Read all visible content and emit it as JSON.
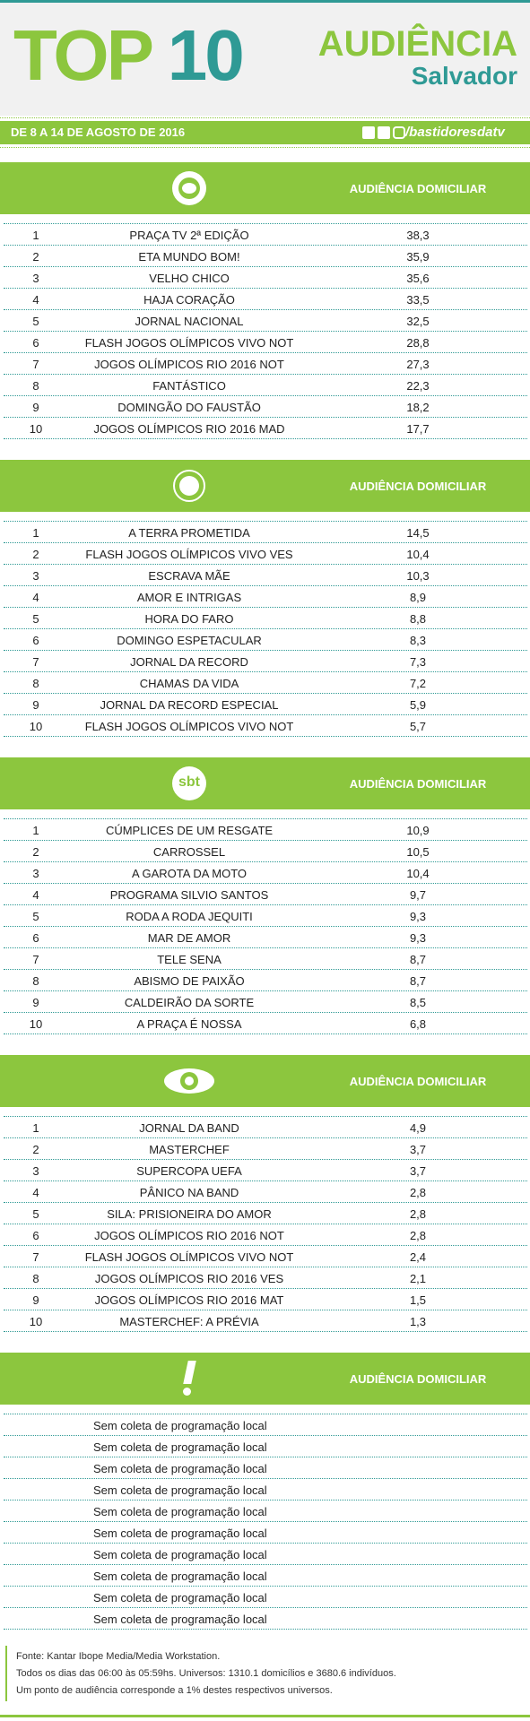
{
  "header": {
    "title_word": "TOP",
    "title_number": "10",
    "brand": "AUDIÊNCIA",
    "city": "Salvador"
  },
  "date_bar": {
    "period": "DE 8 A 14 DE AGOSTO DE 2016",
    "handle": "/bastidoresdatv"
  },
  "sections": [
    {
      "logo": "globo",
      "heading": "AUDIÊNCIA DOMICILIAR",
      "rows": [
        [
          "1",
          "PRAÇA TV 2ª EDIÇÃO",
          "38,3"
        ],
        [
          "2",
          "ETA MUNDO BOM!",
          "35,9"
        ],
        [
          "3",
          "VELHO CHICO",
          "35,6"
        ],
        [
          "4",
          "HAJA CORAÇÃO",
          "33,5"
        ],
        [
          "5",
          "JORNAL NACIONAL",
          "32,5"
        ],
        [
          "6",
          "FLASH JOGOS OLÍMPICOS VIVO NOT",
          "28,8"
        ],
        [
          "7",
          "JOGOS OLÍMPICOS RIO 2016 NOT",
          "27,3"
        ],
        [
          "8",
          "FANTÁSTICO",
          "22,3"
        ],
        [
          "9",
          "DOMINGÃO DO FAUSTÃO",
          "18,2"
        ],
        [
          "10",
          "JOGOS OLÍMPICOS RIO 2016 MAD",
          "17,7"
        ]
      ]
    },
    {
      "logo": "record",
      "heading": "AUDIÊNCIA DOMICILIAR",
      "rows": [
        [
          "1",
          "A TERRA PROMETIDA",
          "14,5"
        ],
        [
          "2",
          "FLASH JOGOS OLÍMPICOS VIVO VES",
          "10,4"
        ],
        [
          "3",
          "ESCRAVA MÃE",
          "10,3"
        ],
        [
          "4",
          "AMOR E INTRIGAS",
          "8,9"
        ],
        [
          "5",
          "HORA DO FARO",
          "8,8"
        ],
        [
          "6",
          "DOMINGO ESPETACULAR",
          "8,3"
        ],
        [
          "7",
          "JORNAL DA RECORD",
          "7,3"
        ],
        [
          "8",
          "CHAMAS DA VIDA",
          "7,2"
        ],
        [
          "9",
          "JORNAL DA RECORD ESPECIAL",
          "5,9"
        ],
        [
          "10",
          "FLASH JOGOS OLÍMPICOS VIVO NOT",
          "5,7"
        ]
      ]
    },
    {
      "logo": "sbt",
      "logo_text": "sbt",
      "heading": "AUDIÊNCIA DOMICILIAR",
      "rows": [
        [
          "1",
          "CÚMPLICES DE UM RESGATE",
          "10,9"
        ],
        [
          "2",
          "CARROSSEL",
          "10,5"
        ],
        [
          "3",
          "A GAROTA DA MOTO",
          "10,4"
        ],
        [
          "4",
          "PROGRAMA SILVIO SANTOS",
          "9,7"
        ],
        [
          "5",
          "RODA A RODA JEQUITI",
          "9,3"
        ],
        [
          "6",
          "MAR DE AMOR",
          "9,3"
        ],
        [
          "7",
          "TELE SENA",
          "8,7"
        ],
        [
          "8",
          "ABISMO DE PAIXÃO",
          "8,7"
        ],
        [
          "9",
          "CALDEIRÃO DA SORTE",
          "8,5"
        ],
        [
          "10",
          "A PRAÇA É NOSSA",
          "6,8"
        ]
      ]
    },
    {
      "logo": "band",
      "heading": "AUDIÊNCIA DOMICILIAR",
      "rows": [
        [
          "1",
          "JORNAL DA BAND",
          "4,9"
        ],
        [
          "2",
          "MASTERCHEF",
          "3,7"
        ],
        [
          "3",
          "SUPERCOPA UEFA",
          "3,7"
        ],
        [
          "4",
          "PÂNICO NA BAND",
          "2,8"
        ],
        [
          "5",
          "SILA: PRISIONEIRA DO AMOR",
          "2,8"
        ],
        [
          "6",
          "JOGOS OLÍMPICOS RIO 2016 NOT",
          "2,8"
        ],
        [
          "7",
          "FLASH JOGOS OLÍMPICOS VIVO NOT",
          "2,4"
        ],
        [
          "8",
          "JOGOS OLÍMPICOS RIO 2016 VES",
          "2,1"
        ],
        [
          "9",
          "JOGOS OLÍMPICOS RIO 2016 MAT",
          "1,5"
        ],
        [
          "10",
          "MASTERCHEF: A PRÉVIA",
          "1,3"
        ]
      ]
    },
    {
      "logo": "alert",
      "heading": "AUDIÊNCIA DOMICILIAR",
      "rows": [
        [
          "Sem coleta de programação local"
        ],
        [
          "Sem coleta de programação local"
        ],
        [
          "Sem coleta de programação local"
        ],
        [
          "Sem coleta de programação local"
        ],
        [
          "Sem coleta de programação local"
        ],
        [
          "Sem coleta de programação local"
        ],
        [
          "Sem coleta de programação local"
        ],
        [
          "Sem coleta de programação local"
        ],
        [
          "Sem coleta de programação local"
        ],
        [
          "Sem coleta de programação local"
        ]
      ]
    }
  ],
  "footer": {
    "lines": [
      "Fonte: Kantar Ibope Media/Media Workstation.",
      "Todos os dias das 06:00 às 05:59hs. Universos: 1310.1 domicílios e 3680.6 indivíduos.",
      "Um ponto de audiência corresponde a 1% destes respectivos universos."
    ]
  }
}
